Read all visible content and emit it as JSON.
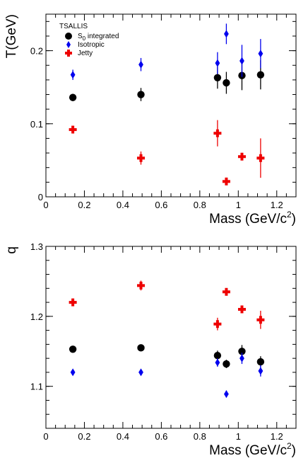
{
  "chart_data": [
    {
      "type": "scatter",
      "legend_title": "TSALLIS",
      "xlabel": "Mass (GeV/c2)",
      "ylabel": "T(GeV)",
      "xlim": [
        0,
        1.3
      ],
      "ylim": [
        0,
        0.25
      ],
      "xticks": [
        0,
        0.2,
        0.4,
        0.6,
        0.8,
        1,
        1.2
      ],
      "yticks": [
        0,
        0.1,
        0.2
      ],
      "xtick_labels": [
        "0",
        "0.2",
        "0.4",
        "0.6",
        "0.8",
        "1",
        "1.2"
      ],
      "ytick_labels": [
        "0",
        "0.1",
        "0.2"
      ],
      "legend_position": "top-left",
      "series": [
        {
          "name": "S0 integrated",
          "marker": "circle",
          "color": "#000000",
          "points": [
            {
              "x": 0.14,
              "y": 0.136,
              "err": 0.005
            },
            {
              "x": 0.494,
              "y": 0.14,
              "err": 0.009
            },
            {
              "x": 0.892,
              "y": 0.163,
              "err": 0.015
            },
            {
              "x": 0.938,
              "y": 0.156,
              "err": 0.015
            },
            {
              "x": 1.019,
              "y": 0.166,
              "err": 0.02
            },
            {
              "x": 1.116,
              "y": 0.167,
              "err": 0.02
            }
          ]
        },
        {
          "name": "Isotropic",
          "marker": "diamond",
          "color": "#0000ee",
          "points": [
            {
              "x": 0.14,
              "y": 0.167,
              "err": 0.007
            },
            {
              "x": 0.494,
              "y": 0.181,
              "err": 0.009
            },
            {
              "x": 0.892,
              "y": 0.183,
              "err": 0.015
            },
            {
              "x": 0.938,
              "y": 0.223,
              "err": 0.014
            },
            {
              "x": 1.019,
              "y": 0.186,
              "err": 0.022
            },
            {
              "x": 1.116,
              "y": 0.196,
              "err": 0.02
            }
          ]
        },
        {
          "name": "Jetty",
          "marker": "cross",
          "color": "#ee0000",
          "points": [
            {
              "x": 0.14,
              "y": 0.092,
              "err": 0.003
            },
            {
              "x": 0.494,
              "y": 0.053,
              "err": 0.009
            },
            {
              "x": 0.892,
              "y": 0.087,
              "err": 0.018
            },
            {
              "x": 0.938,
              "y": 0.021,
              "err": 0.003
            },
            {
              "x": 1.019,
              "y": 0.055,
              "err": 0.003
            },
            {
              "x": 1.116,
              "y": 0.053,
              "err": 0.027
            }
          ]
        }
      ]
    },
    {
      "type": "scatter",
      "xlabel": "Mass (GeV/c2)",
      "ylabel": "q",
      "xlim": [
        0,
        1.3
      ],
      "ylim": [
        1.04,
        1.3
      ],
      "xticks": [
        0,
        0.2,
        0.4,
        0.6,
        0.8,
        1,
        1.2
      ],
      "yticks": [
        1.1,
        1.2,
        1.3
      ],
      "xtick_labels": [
        "0",
        "0.2",
        "0.4",
        "0.6",
        "0.8",
        "1",
        "1.2"
      ],
      "ytick_labels": [
        "1.1",
        "1.2",
        "1.3"
      ],
      "series": [
        {
          "name": "S0 integrated",
          "marker": "circle",
          "color": "#000000",
          "points": [
            {
              "x": 0.14,
              "y": 1.153,
              "err": 0.003
            },
            {
              "x": 0.494,
              "y": 1.155,
              "err": 0.003
            },
            {
              "x": 0.892,
              "y": 1.144,
              "err": 0.007
            },
            {
              "x": 0.938,
              "y": 1.132,
              "err": 0.006
            },
            {
              "x": 1.019,
              "y": 1.15,
              "err": 0.009
            },
            {
              "x": 1.116,
              "y": 1.135,
              "err": 0.008
            }
          ]
        },
        {
          "name": "Isotropic",
          "marker": "diamond",
          "color": "#0000ee",
          "points": [
            {
              "x": 0.14,
              "y": 1.12,
              "err": 0.002
            },
            {
              "x": 0.494,
              "y": 1.12,
              "err": 0.002
            },
            {
              "x": 0.892,
              "y": 1.134,
              "err": 0.006
            },
            {
              "x": 0.938,
              "y": 1.089,
              "err": 0.005
            },
            {
              "x": 1.019,
              "y": 1.14,
              "err": 0.008
            },
            {
              "x": 1.116,
              "y": 1.122,
              "err": 0.008
            }
          ]
        },
        {
          "name": "Jetty",
          "marker": "cross",
          "color": "#ee0000",
          "points": [
            {
              "x": 0.14,
              "y": 1.22,
              "err": 0.003
            },
            {
              "x": 0.494,
              "y": 1.244,
              "err": 0.007
            },
            {
              "x": 0.892,
              "y": 1.189,
              "err": 0.009
            },
            {
              "x": 0.938,
              "y": 1.235,
              "err": 0.004
            },
            {
              "x": 1.019,
              "y": 1.21,
              "err": 0.004
            },
            {
              "x": 1.116,
              "y": 1.195,
              "err": 0.013
            }
          ]
        }
      ]
    }
  ]
}
